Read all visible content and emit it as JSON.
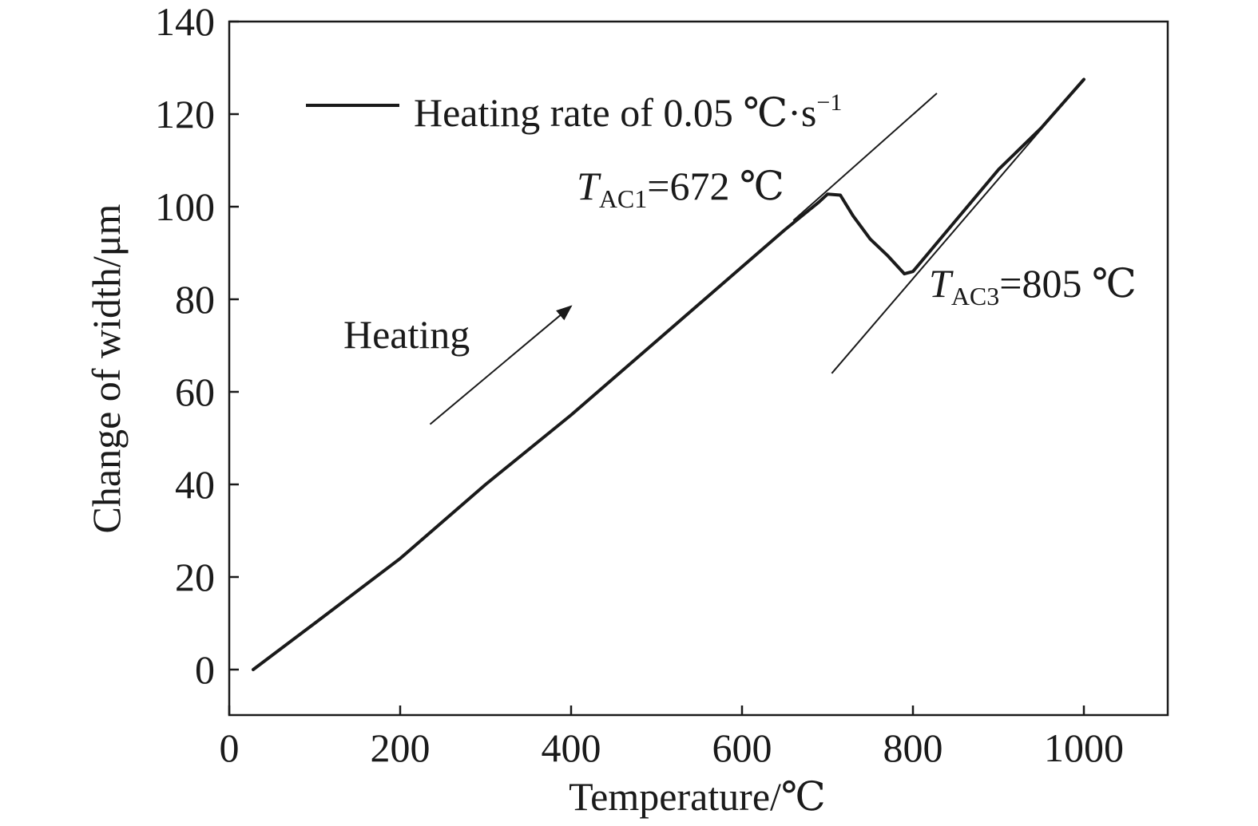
{
  "chart_data": {
    "type": "line",
    "xlabel": "Temperature/℃",
    "ylabel": "Change of width/μm",
    "xlim": [
      0,
      1100
    ],
    "ylim": [
      -10,
      140
    ],
    "xticks": [
      "0",
      "200",
      "400",
      "600",
      "800",
      "1000"
    ],
    "yticks": [
      "0",
      "20",
      "40",
      "60",
      "80",
      "100",
      "120",
      "140"
    ],
    "grid": false,
    "legend_position": "top-left",
    "series": [
      {
        "name": "Heating rate of 0.05 ℃·s⁻¹",
        "color": "#1a1a1a",
        "x": [
          28,
          100,
          200,
          300,
          400,
          500,
          600,
          650,
          690,
          700,
          715,
          730,
          750,
          770,
          790,
          800,
          850,
          900,
          950,
          1000
        ],
        "y": [
          0,
          10,
          24,
          40,
          55,
          71,
          87,
          95,
          101,
          102.7,
          102.5,
          98,
          93,
          89.5,
          85.5,
          86,
          97,
          108,
          117,
          127.5
        ]
      }
    ],
    "tangent_lines": [
      {
        "name": "tangent-low",
        "x": [
          660,
          828
        ],
        "y": [
          97,
          124.5
        ]
      },
      {
        "name": "tangent-high",
        "x": [
          705,
          1000
        ],
        "y": [
          64,
          127.5
        ]
      }
    ],
    "heating_arrow": {
      "x": [
        235,
        400
      ],
      "y": [
        53,
        78.5
      ]
    },
    "legend": {
      "label_main": "Heating rate of 0.05 ℃·s",
      "label_sup": "−1"
    },
    "annotations": {
      "heating": "Heating",
      "t_ac1": {
        "symbol": "T",
        "subscript": "AC1",
        "value": "=672 ℃"
      },
      "t_ac3": {
        "symbol": "T",
        "subscript": "AC3",
        "value": "=805 ℃"
      }
    }
  }
}
